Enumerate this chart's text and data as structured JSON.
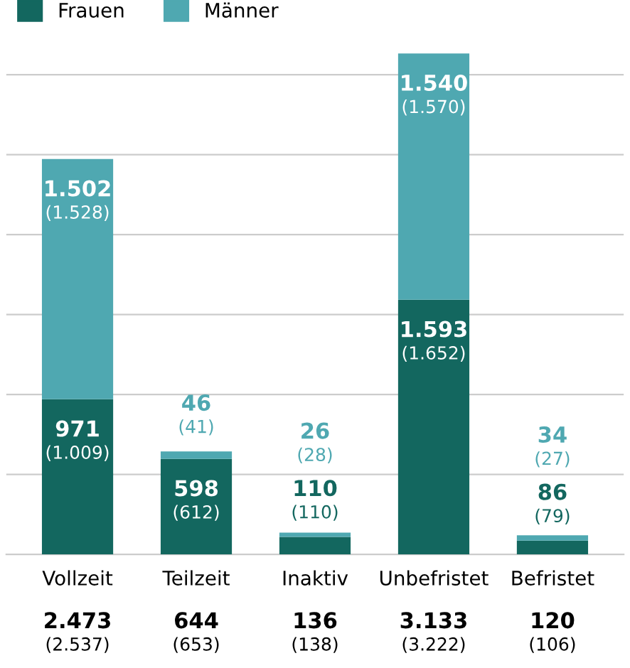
{
  "chart_data": {
    "type": "bar",
    "stacked": true,
    "categories": [
      "Vollzeit",
      "Teilzeit",
      "Inaktiv",
      "Unbefristet",
      "Befristet"
    ],
    "series": [
      {
        "name": "Frauen",
        "color": "#13675f",
        "values": [
          971,
          598,
          110,
          1593,
          86
        ],
        "value_labels": [
          "971\n(1.009)",
          "598\n(612)",
          "110\n(110)",
          "1.593\n(1.652)",
          "86\n(79)"
        ]
      },
      {
        "name": "Männer",
        "color": "#4fa8b1",
        "values": [
          1502,
          46,
          26,
          1540,
          34
        ],
        "value_labels": [
          "1.502\n(1.528)",
          "46\n(41)",
          "26\n(28)",
          "1.540\n(1.570)",
          "34\n(27)"
        ]
      }
    ],
    "totals": [
      "2.473\n(2.537)",
      "644\n(653)",
      "136\n(138)",
      "3.133\n(3.222)",
      "120\n(106)"
    ],
    "yticks": [
      {
        "value": 0,
        "label": null
      },
      {
        "value": 500,
        "label": null
      },
      {
        "value": 1000,
        "label": null
      },
      {
        "value": 1500,
        "label": null
      },
      {
        "value": 2000,
        "label": null
      },
      {
        "value": 2500,
        "label": null
      },
      {
        "value": 3000,
        "label": null
      }
    ],
    "tick_labels": "x",
    "grid": "y",
    "legend": "top left"
  }
}
